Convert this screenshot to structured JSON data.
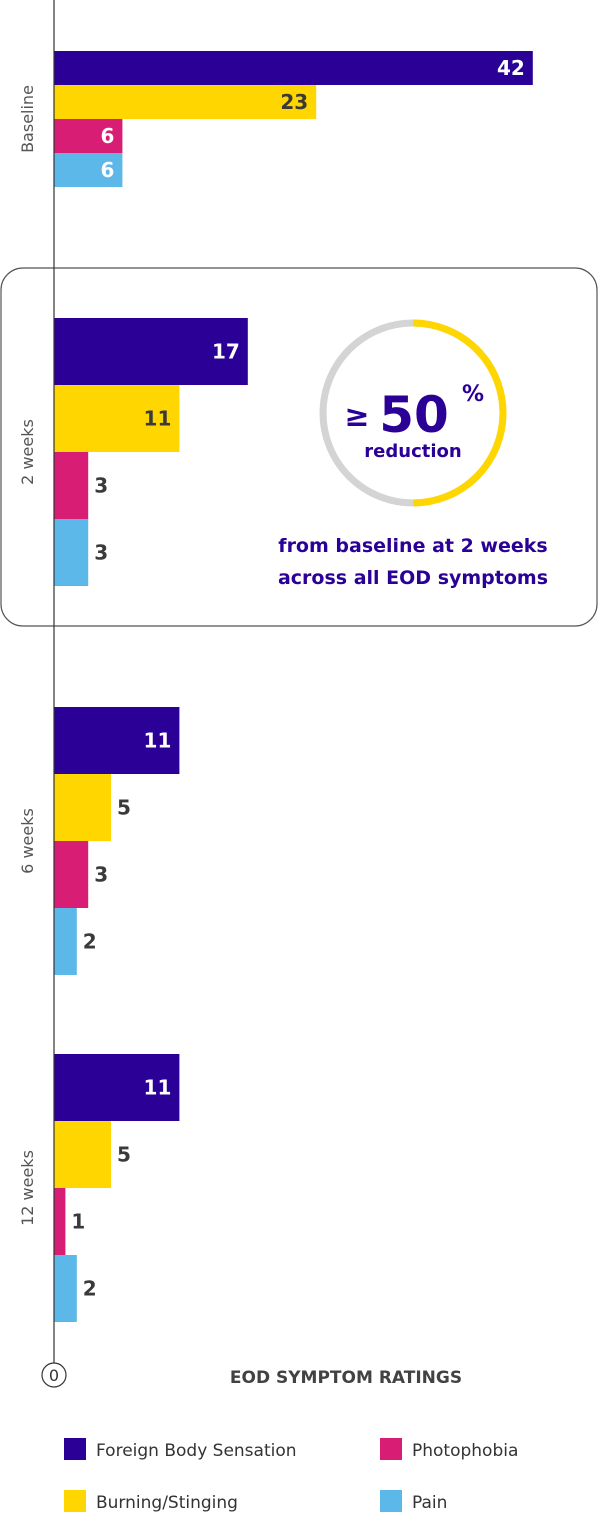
{
  "chart_data": {
    "type": "bar",
    "orientation": "horizontal",
    "categories": [
      "Baseline",
      "2 weeks",
      "6 weeks",
      "12 weeks"
    ],
    "series": [
      {
        "name": "Foreign Body Sensation",
        "color": "#2a0096",
        "values": [
          42,
          17,
          11,
          11
        ]
      },
      {
        "name": "Burning/Stinging",
        "color": "#ffd600",
        "values": [
          23,
          11,
          5,
          5
        ]
      },
      {
        "name": "Photophobia",
        "color": "#d81e74",
        "values": [
          6,
          3,
          3,
          1
        ]
      },
      {
        "name": "Pain",
        "color": "#5cb8e8",
        "values": [
          6,
          3,
          2,
          2
        ]
      }
    ],
    "xlabel": "EOD SYMPTOM RATINGS",
    "x_origin_label": "0",
    "legend_position": "bottom",
    "grid": false,
    "colors": {
      "value_text_dark": "#3a3a3a",
      "value_text_light": "#ffffff",
      "axis": "#333333"
    }
  },
  "callout": {
    "sign": "≥",
    "number": "50",
    "percent": "%",
    "word": "reduction",
    "line1": "from baseline at 2 weeks",
    "line2": "across all EOD symptoms",
    "ring_color": "#d4d4d4",
    "ring_fill_color": "#ffd600",
    "ring_fill_fraction": 0.5,
    "text_color": "#2a0096"
  }
}
